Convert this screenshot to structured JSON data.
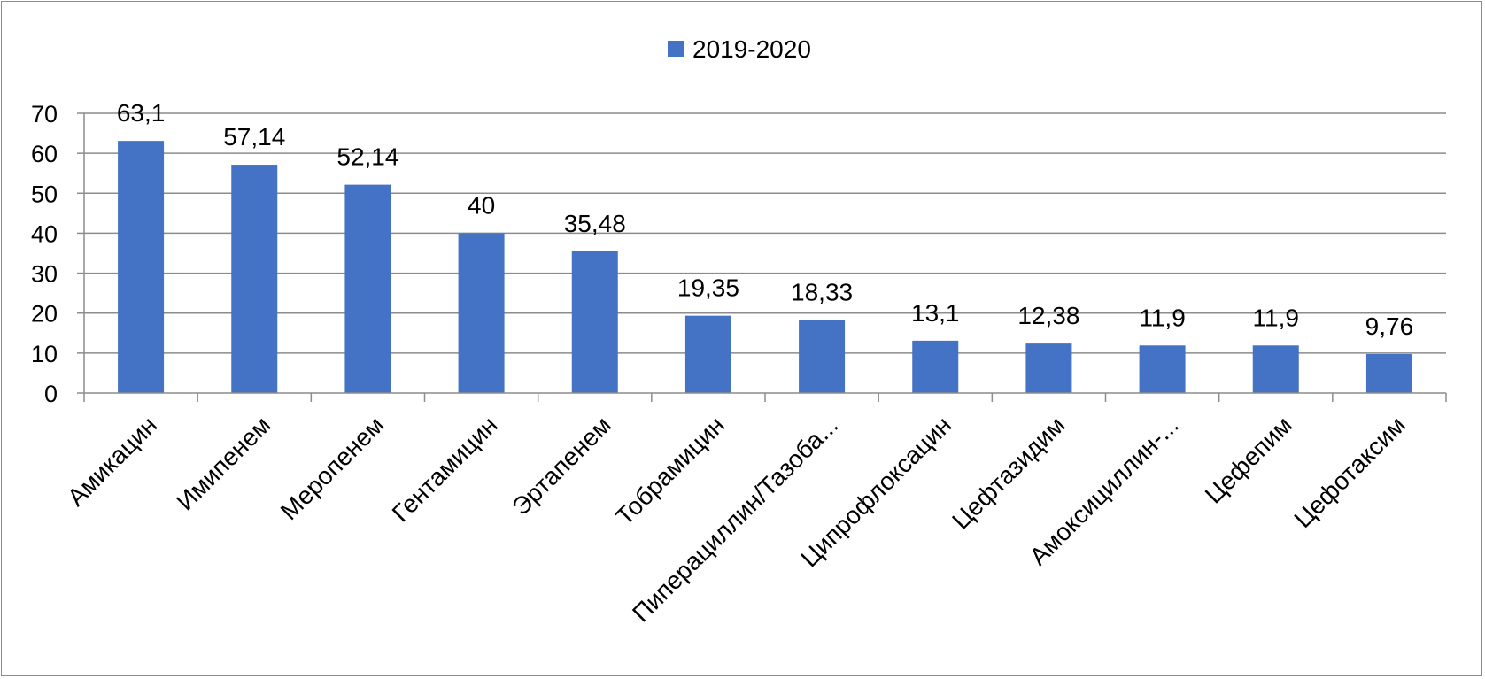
{
  "chart_data": {
    "type": "bar",
    "categories": [
      "Амикацин",
      "Имипенем",
      "Меропенем",
      "Гентамицин",
      "Эртапенем",
      "Тобрамицин",
      "Пиперациллин/Тазоба...",
      "Ципрофлоксацин",
      "Цефтазидим",
      "Амоксициллин-...",
      "Цефепим",
      "Цефотаксим"
    ],
    "series": [
      {
        "name": "2019-2020",
        "values": [
          63.1,
          57.14,
          52.14,
          40,
          35.48,
          19.35,
          18.33,
          13.1,
          12.38,
          11.9,
          11.9,
          9.76
        ],
        "data_labels": [
          "63,1",
          "57,14",
          "52,14",
          "40",
          "35,48",
          "19,35",
          "18,33",
          "13,1",
          "12,38",
          "11,9",
          "11,9",
          "9,76"
        ]
      }
    ],
    "ylim": [
      0,
      70
    ],
    "yticks": [
      "0",
      "10",
      "20",
      "30",
      "40",
      "50",
      "60",
      "70"
    ],
    "grid": true,
    "legend_position": "top",
    "colors": {
      "bar": "#4472C4",
      "grid": "#8c8c8c",
      "axis": "#8c8c8c"
    }
  }
}
